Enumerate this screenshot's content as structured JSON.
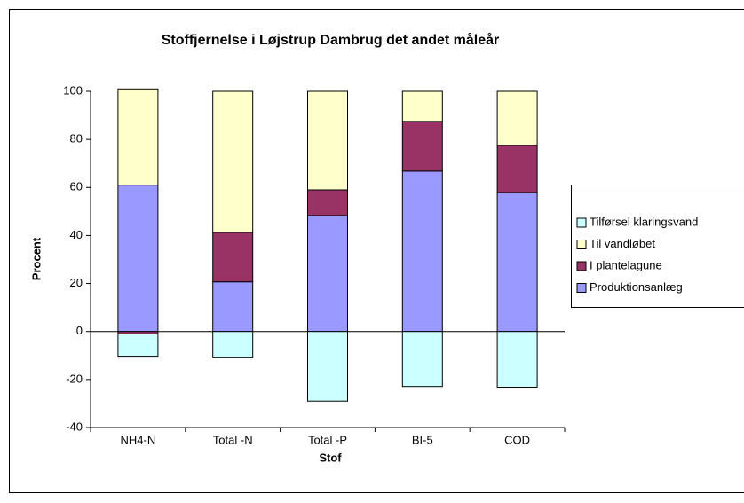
{
  "chart_data": {
    "type": "bar",
    "stacked": true,
    "title": "Stoffjernelse i Løjstrup Dambrug det andet måleår",
    "xlabel": "Stof",
    "ylabel": "Procent",
    "categories": [
      "NH4-N",
      "Total -N",
      "Total -P",
      "BI-5",
      "COD"
    ],
    "series": [
      {
        "name": "Produktionsanlæg",
        "color": "#9999ff",
        "values": [
          61,
          20.7,
          48.3,
          66.8,
          57.9
        ]
      },
      {
        "name": "I plantelagune",
        "color": "#993366",
        "values": [
          -1,
          20.6,
          10.7,
          20.7,
          19.6
        ]
      },
      {
        "name": "Til vandløbet",
        "color": "#ffffcc",
        "values": [
          40,
          58.7,
          41,
          12.5,
          22.5
        ]
      },
      {
        "name": "Tilførsel klaringsvand",
        "color": "#ccffff",
        "values": [
          -9.3,
          -10.7,
          -29,
          -22.9,
          -23.2
        ]
      }
    ],
    "ylim": [
      -40,
      100
    ],
    "yticks": [
      -40,
      -20,
      0,
      20,
      40,
      60,
      80,
      100
    ]
  }
}
